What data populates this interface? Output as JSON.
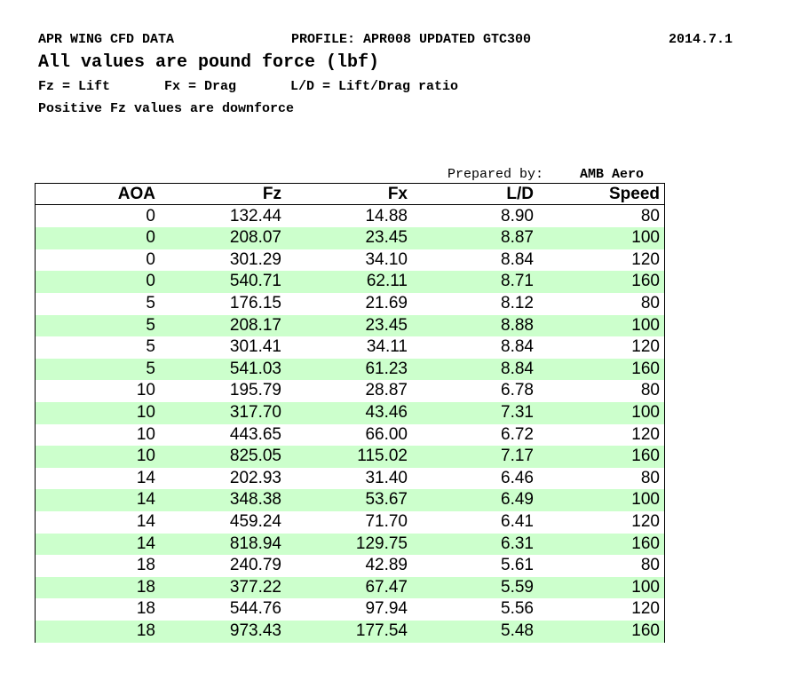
{
  "header": {
    "line1": [
      "APR WING CFD DATA",
      "PROFILE: APR008 UPDATED GTC300",
      "2014.7.1"
    ],
    "title": "All values are pound force (lbf)",
    "legend": [
      "Fz = Lift",
      "Fx = Drag",
      "L/D = Lift/Drag ratio"
    ],
    "note": "Positive Fz values are downforce"
  },
  "prepared": {
    "label": "Prepared by:",
    "name": "AMB Aero"
  },
  "table": {
    "columns": [
      "AOA",
      "Fz",
      "Fx",
      "L/D",
      "Speed"
    ],
    "rows": [
      [
        "0",
        "132.44",
        "14.88",
        "8.90",
        "80"
      ],
      [
        "0",
        "208.07",
        "23.45",
        "8.87",
        "100"
      ],
      [
        "0",
        "301.29",
        "34.10",
        "8.84",
        "120"
      ],
      [
        "0",
        "540.71",
        "62.11",
        "8.71",
        "160"
      ],
      [
        "5",
        "176.15",
        "21.69",
        "8.12",
        "80"
      ],
      [
        "5",
        "208.17",
        "23.45",
        "8.88",
        "100"
      ],
      [
        "5",
        "301.41",
        "34.11",
        "8.84",
        "120"
      ],
      [
        "5",
        "541.03",
        "61.23",
        "8.84",
        "160"
      ],
      [
        "10",
        "195.79",
        "28.87",
        "6.78",
        "80"
      ],
      [
        "10",
        "317.70",
        "43.46",
        "7.31",
        "100"
      ],
      [
        "10",
        "443.65",
        "66.00",
        "6.72",
        "120"
      ],
      [
        "10",
        "825.05",
        "115.02",
        "7.17",
        "160"
      ],
      [
        "14",
        "202.93",
        "31.40",
        "6.46",
        "80"
      ],
      [
        "14",
        "348.38",
        "53.67",
        "6.49",
        "100"
      ],
      [
        "14",
        "459.24",
        "71.70",
        "6.41",
        "120"
      ],
      [
        "14",
        "818.94",
        "129.75",
        "6.31",
        "160"
      ],
      [
        "18",
        "240.79",
        "42.89",
        "5.61",
        "80"
      ],
      [
        "18",
        "377.22",
        "67.47",
        "5.59",
        "100"
      ],
      [
        "18",
        "544.76",
        "97.94",
        "5.56",
        "120"
      ],
      [
        "18",
        "973.43",
        "177.54",
        "5.48",
        "160"
      ]
    ]
  }
}
